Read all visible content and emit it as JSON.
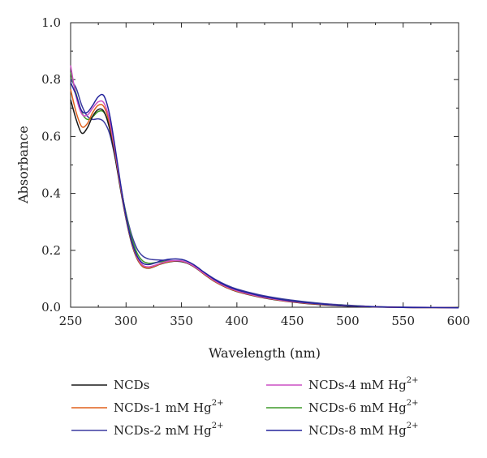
{
  "chart_data": {
    "type": "line",
    "xlabel": "Wavelength (nm)",
    "ylabel": "Absorbance",
    "xlim": [
      250,
      600
    ],
    "ylim": [
      0.0,
      1.0
    ],
    "xticks": [
      "250",
      "300",
      "350",
      "400",
      "450",
      "500",
      "550",
      "600"
    ],
    "yticks": [
      "0.0",
      "0.2",
      "0.4",
      "0.6",
      "0.8",
      "1.0"
    ],
    "grid": false,
    "legend_position": "bottom",
    "x": [
      250,
      255,
      260,
      265,
      270,
      275,
      280,
      285,
      290,
      295,
      300,
      305,
      310,
      315,
      320,
      325,
      330,
      335,
      340,
      345,
      350,
      355,
      360,
      365,
      370,
      380,
      390,
      400,
      420,
      440,
      460,
      480,
      500,
      520,
      540,
      560,
      580,
      600
    ],
    "series": [
      {
        "name": "NCDs",
        "sup": "",
        "color": "#1a1a1a",
        "values": [
          0.73,
          0.66,
          0.612,
          0.63,
          0.672,
          0.695,
          0.688,
          0.63,
          0.53,
          0.415,
          0.31,
          0.225,
          0.17,
          0.143,
          0.137,
          0.142,
          0.15,
          0.156,
          0.16,
          0.162,
          0.161,
          0.155,
          0.145,
          0.132,
          0.117,
          0.09,
          0.07,
          0.055,
          0.036,
          0.023,
          0.014,
          0.008,
          0.004,
          0.001,
          0.0,
          -0.001,
          -0.001,
          -0.002
        ]
      },
      {
        "name": "NCDs-1 mM Hg",
        "sup": "2+",
        "color": "#e0601c",
        "values": [
          0.765,
          0.685,
          0.635,
          0.645,
          0.685,
          0.71,
          0.705,
          0.648,
          0.545,
          0.425,
          0.315,
          0.228,
          0.172,
          0.144,
          0.138,
          0.143,
          0.151,
          0.157,
          0.161,
          0.163,
          0.162,
          0.156,
          0.146,
          0.133,
          0.118,
          0.091,
          0.071,
          0.056,
          0.037,
          0.024,
          0.015,
          0.009,
          0.005,
          0.002,
          0.0,
          -0.001,
          -0.001,
          -0.002
        ]
      },
      {
        "name": "NCDs-2 mM Hg",
        "sup": "2+",
        "color": "#3b3aa0",
        "values": [
          0.8,
          0.77,
          0.71,
          0.672,
          0.66,
          0.662,
          0.652,
          0.612,
          0.528,
          0.425,
          0.33,
          0.255,
          0.205,
          0.18,
          0.17,
          0.167,
          0.166,
          0.165,
          0.164,
          0.162,
          0.16,
          0.155,
          0.147,
          0.137,
          0.124,
          0.099,
          0.079,
          0.064,
          0.044,
          0.03,
          0.02,
          0.012,
          0.007,
          0.003,
          0.001,
          0.0,
          -0.001,
          -0.002
        ]
      },
      {
        "name": "NCDs-4 mM Hg",
        "sup": "2+",
        "color": "#cc4fc4",
        "values": [
          0.85,
          0.74,
          0.68,
          0.675,
          0.7,
          0.722,
          0.718,
          0.66,
          0.552,
          0.428,
          0.317,
          0.232,
          0.176,
          0.148,
          0.142,
          0.146,
          0.153,
          0.159,
          0.163,
          0.164,
          0.163,
          0.157,
          0.147,
          0.134,
          0.12,
          0.093,
          0.073,
          0.058,
          0.038,
          0.025,
          0.016,
          0.01,
          0.005,
          0.002,
          0.0,
          -0.001,
          -0.001,
          -0.002
        ]
      },
      {
        "name": "NCDs-6 mM Hg",
        "sup": "2+",
        "color": "#3f9a2a",
        "values": [
          0.825,
          0.75,
          0.685,
          0.66,
          0.67,
          0.688,
          0.685,
          0.64,
          0.545,
          0.43,
          0.327,
          0.245,
          0.19,
          0.163,
          0.155,
          0.156,
          0.159,
          0.161,
          0.163,
          0.163,
          0.161,
          0.155,
          0.146,
          0.134,
          0.12,
          0.095,
          0.075,
          0.06,
          0.04,
          0.027,
          0.017,
          0.01,
          0.006,
          0.002,
          0.0,
          -0.001,
          -0.001,
          -0.002
        ]
      },
      {
        "name": "NCDs-8 mM Hg",
        "sup": "2+",
        "color": "#24239c",
        "values": [
          0.79,
          0.745,
          0.69,
          0.685,
          0.71,
          0.74,
          0.743,
          0.68,
          0.565,
          0.435,
          0.32,
          0.233,
          0.18,
          0.155,
          0.15,
          0.154,
          0.161,
          0.166,
          0.169,
          0.17,
          0.168,
          0.162,
          0.152,
          0.139,
          0.124,
          0.097,
          0.076,
          0.061,
          0.041,
          0.027,
          0.017,
          0.01,
          0.005,
          0.002,
          0.0,
          -0.001,
          -0.001,
          -0.002
        ]
      }
    ]
  }
}
